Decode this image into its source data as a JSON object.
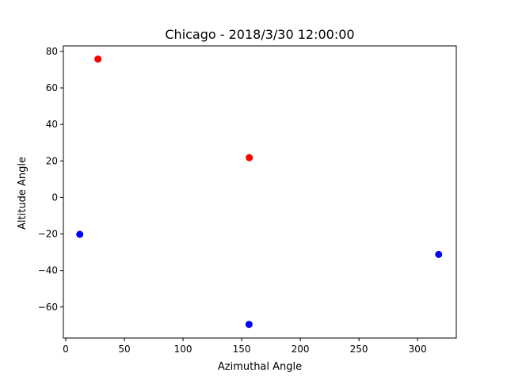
{
  "chart_data": {
    "type": "scatter",
    "title": "Chicago - 2018/3/30 12:00:00",
    "xlabel": "Azimuthal Angle",
    "ylabel": "Altitude Angle",
    "xlim": [
      -2,
      333
    ],
    "ylim": [
      -77,
      83
    ],
    "xticks": [
      0,
      50,
      100,
      150,
      200,
      250,
      300
    ],
    "yticks": [
      -60,
      -40,
      -20,
      0,
      20,
      40,
      60,
      80
    ],
    "grid": false,
    "series": [
      {
        "color": "#ff0000",
        "points": [
          {
            "x": 27.5,
            "y": 75.8
          },
          {
            "x": 156.5,
            "y": 21.8
          }
        ]
      },
      {
        "color": "#0000ff",
        "points": [
          {
            "x": 12.0,
            "y": -20.2
          },
          {
            "x": 156.3,
            "y": -69.5
          },
          {
            "x": 318.0,
            "y": -31.2
          }
        ]
      }
    ]
  }
}
